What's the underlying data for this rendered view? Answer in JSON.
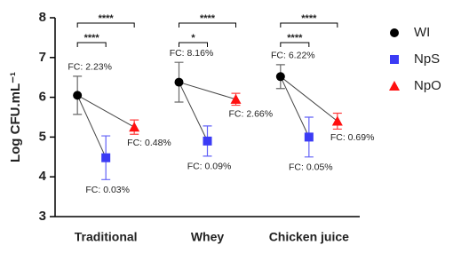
{
  "chart_data": {
    "type": "dot",
    "categories": [
      "Traditional",
      "Whey",
      "Chicken juice"
    ],
    "ylabel": "Log CFU.mL⁻¹",
    "ylim": [
      3,
      8
    ],
    "yticks": [
      3,
      4,
      5,
      6,
      7,
      8
    ],
    "series": [
      {
        "name": "WI",
        "color": "#000000",
        "marker": "circle",
        "values": [
          6.05,
          6.38,
          6.52
        ],
        "errors": [
          0.48,
          0.5,
          0.3
        ],
        "fc_labels": [
          "FC: 2.23%",
          "FC: 8.16%",
          "FC: 6.22%"
        ]
      },
      {
        "name": "NpS",
        "color": "#3b3bf5",
        "marker": "square",
        "values": [
          4.48,
          4.9,
          5.0
        ],
        "errors": [
          0.55,
          0.38,
          0.5
        ],
        "fc_labels": [
          "FC: 0.03%",
          "FC: 0.09%",
          "FC: 0.05%"
        ]
      },
      {
        "name": "NpO",
        "color": "#ff1010",
        "marker": "triangle",
        "values": [
          5.25,
          5.95,
          5.4
        ],
        "errors": [
          0.18,
          0.15,
          0.2
        ],
        "fc_labels": [
          "FC: 0.48%",
          "FC: 2.66%",
          "FC: 0.69%"
        ]
      }
    ],
    "significance": [
      [
        "****",
        "****"
      ],
      [
        "*",
        "****"
      ],
      [
        "****",
        "****"
      ]
    ]
  }
}
